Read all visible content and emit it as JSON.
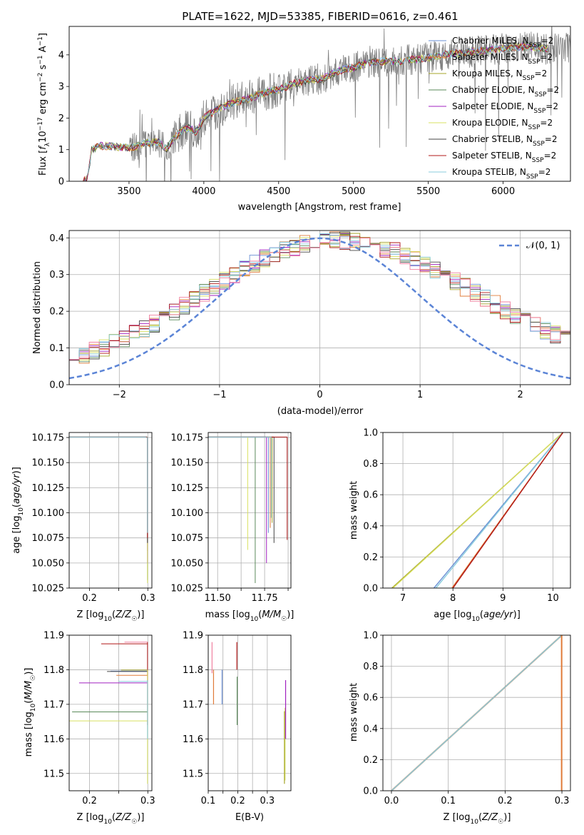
{
  "figure_title": "PLATE=1622, MJD=53385, FIBERID=0616, z=0.461",
  "colors": {
    "Chabrier MILES": "#6a8fd4",
    "Salpeter MILES": "#e07b39",
    "Kroupa MILES": "#a5a52a",
    "Chabrier ELODIE": "#5a8a5a",
    "Salpeter ELODIE": "#a020c0",
    "Kroupa ELODIE": "#d8e060",
    "Chabrier STELIB": "#444444",
    "Salpeter STELIB": "#b01818",
    "Kroupa STELIB": "#88ccdd",
    "data": "#808080",
    "normal": "#5b84d6",
    "extra_pink": "#f080a0"
  },
  "chart_data": [
    {
      "id": "spectrum",
      "type": "line",
      "title": "PLATE=1622, MJD=53385, FIBERID=0616, z=0.461",
      "xlabel": "wavelength [Angstrom, rest frame]",
      "ylabel": "Flux [f_λ 10^-17 erg cm^-2 s^-1 A^-1]",
      "xlim": [
        3100,
        6450
      ],
      "ylim": [
        0,
        4.9
      ],
      "xticks": [
        3500,
        4000,
        4500,
        5000,
        5500,
        6000
      ],
      "yticks": [
        0,
        1,
        2,
        3,
        4
      ],
      "grid": false,
      "legend_position": "top-right",
      "series": [
        {
          "name": "Chabrier MILES, N_SSP=2"
        },
        {
          "name": "Salpeter MILES, N_SSP=2"
        },
        {
          "name": "Kroupa MILES, N_SSP=2"
        },
        {
          "name": "Chabrier ELODIE, N_SSP=2"
        },
        {
          "name": "Salpeter ELODIE, N_SSP=2"
        },
        {
          "name": "Kroupa ELODIE, N_SSP=2"
        },
        {
          "name": "Chabrier STELIB, N_SSP=2"
        },
        {
          "name": "Salpeter STELIB, N_SSP=2"
        },
        {
          "name": "Kroupa STELIB, N_SSP=2"
        }
      ],
      "model_continuum": {
        "x": [
          3190,
          3220,
          3250,
          3300,
          3400,
          3500,
          3550,
          3600,
          3700,
          3750,
          3800,
          3850,
          3900,
          3950,
          4000,
          4100,
          4200,
          4300,
          4400,
          4500,
          4600,
          4700,
          4800,
          4900,
          5000,
          5100,
          5200,
          5300,
          5400,
          5500,
          5600,
          5700,
          5800,
          5900,
          6000,
          6100,
          6200,
          6300
        ],
        "y": [
          0,
          0.05,
          1.0,
          1.12,
          1.1,
          1.05,
          1.1,
          1.2,
          1.25,
          1.0,
          1.35,
          1.6,
          1.7,
          1.55,
          2.0,
          2.3,
          2.5,
          2.6,
          2.8,
          2.9,
          3.1,
          3.2,
          3.25,
          3.5,
          3.6,
          3.75,
          3.8,
          3.8,
          3.85,
          3.9,
          4.0,
          4.05,
          4.1,
          4.15,
          4.2,
          4.25,
          4.25,
          4.2
        ]
      }
    },
    {
      "id": "residuals",
      "type": "histogram",
      "xlabel": "(data-model)/error",
      "ylabel": "Normed distribution",
      "xlim": [
        -2.5,
        2.5
      ],
      "ylim": [
        0,
        0.42
      ],
      "xticks": [
        -2,
        -1,
        0,
        1,
        2
      ],
      "yticks": [
        0.0,
        0.1,
        0.2,
        0.3,
        0.4
      ],
      "grid": true,
      "legend_position": "top-right",
      "legend": [
        "𝒩(0, 1)"
      ],
      "bin_edges_start": -2.5,
      "bin_width": 0.1
    },
    {
      "id": "age_vs_Z",
      "type": "line",
      "xlabel": "Z [log10(Z/Z☉)]",
      "ylabel": "age [log10(age/yr)]",
      "xlim": [
        0.165,
        0.307
      ],
      "ylim": [
        10.025,
        10.18
      ],
      "xticks": [
        0.2,
        0.25,
        0.3
      ],
      "xticklabels": [
        "0.2",
        "",
        "0.3"
      ],
      "yticks": [
        10.025,
        10.05,
        10.075,
        10.1,
        10.125,
        10.15,
        10.175
      ]
    },
    {
      "id": "age_vs_mass",
      "type": "line",
      "xlabel": "mass [log10(M/M☉)]",
      "ylabel": "",
      "xlim": [
        11.45,
        11.89
      ],
      "ylim": [
        10.025,
        10.18
      ],
      "xticks": [
        11.5,
        11.625,
        11.75,
        11.875
      ],
      "xticklabels": [
        "11.50",
        "",
        "11.75",
        ""
      ],
      "yticks": [
        10.025,
        10.05,
        10.075,
        10.1,
        10.125,
        10.15,
        10.175
      ]
    },
    {
      "id": "cum_age",
      "type": "line",
      "xlabel": "age [log10(age/yr)]",
      "ylabel": "mass weight",
      "xlim": [
        6.6,
        10.35
      ],
      "ylim": [
        0,
        1
      ],
      "xticks": [
        7,
        8,
        9,
        10
      ],
      "yticks": [
        0.0,
        0.2,
        0.4,
        0.6,
        0.8,
        1.0
      ],
      "lines": [
        {
          "x0": 6.78,
          "x1": 10.2
        },
        {
          "x0": 6.8,
          "x1": 10.2
        },
        {
          "x0": 7.62,
          "x1": 10.2
        },
        {
          "x0": 7.66,
          "x1": 10.2
        },
        {
          "x0": 7.98,
          "x1": 10.2
        },
        {
          "x0": 8.0,
          "x1": 10.2
        }
      ]
    },
    {
      "id": "mass_vs_Z",
      "type": "line",
      "xlabel": "Z [log10(Z/Z☉)]",
      "ylabel": "mass [log10(M/M☉)]",
      "xlim": [
        0.165,
        0.307
      ],
      "ylim": [
        11.45,
        11.9
      ],
      "xticks": [
        0.2,
        0.25,
        0.3
      ],
      "xticklabels": [
        "0.2",
        "",
        "0.3"
      ],
      "yticks": [
        11.5,
        11.6,
        11.7,
        11.8,
        11.9
      ]
    },
    {
      "id": "mass_vs_EBV",
      "type": "line",
      "xlabel": "E(B-V)",
      "ylabel": "",
      "xlim": [
        0.1,
        0.38
      ],
      "ylim": [
        11.45,
        11.9
      ],
      "xticks": [
        0.1,
        0.15,
        0.2,
        0.25,
        0.3
      ],
      "xticklabels": [
        "0.1",
        "",
        "0.2",
        "",
        "0.3"
      ],
      "yticks": [
        11.5,
        11.6,
        11.7,
        11.8,
        11.9
      ]
    },
    {
      "id": "cum_Z",
      "type": "line",
      "xlabel": "Z [log10(Z/Z☉)]",
      "ylabel": "mass weight",
      "xlim": [
        -0.015,
        0.315
      ],
      "ylim": [
        0,
        1
      ],
      "xticks": [
        0.0,
        0.1,
        0.2,
        0.3
      ],
      "yticks": [
        0.0,
        0.2,
        0.4,
        0.6,
        0.8,
        1.0
      ]
    }
  ]
}
